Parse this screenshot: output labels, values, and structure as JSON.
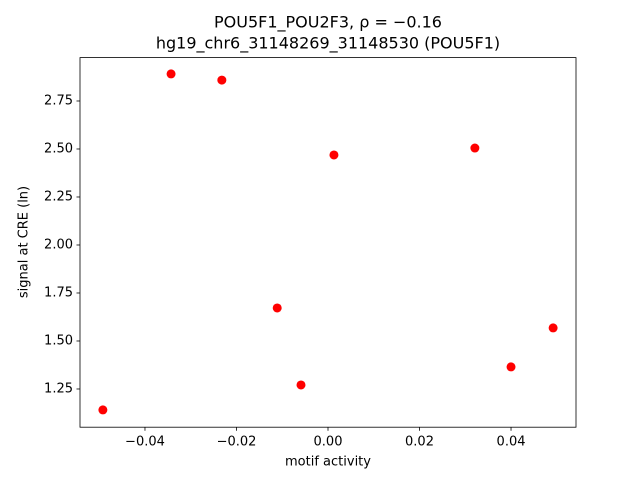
{
  "chart_data": {
    "type": "scatter",
    "title": "POU5F1_POU2F3, ρ = −0.16",
    "subtitle": "hg19_chr6_31148269_31148530 (POU5F1)",
    "x_label": "motif activity",
    "y_label": "signal at CRE (ln)",
    "color": "#ff0000",
    "x": [
      -0.0492,
      -0.0343,
      -0.0232,
      -0.0111,
      -0.0059,
      0.0013,
      0.0321,
      0.04,
      0.0492
    ],
    "values": [
      1.141,
      2.891,
      2.859,
      1.672,
      1.271,
      2.469,
      2.505,
      1.365,
      1.568
    ],
    "xlim": [
      -0.0542,
      0.0542
    ],
    "ylim": [
      1.051,
      2.976
    ],
    "xticks": [
      {
        "value": -0.04,
        "label": "−0.04"
      },
      {
        "value": -0.02,
        "label": "−0.02"
      },
      {
        "value": 0,
        "label": "0.00"
      },
      {
        "value": 0.02,
        "label": "0.02"
      },
      {
        "value": 0.04,
        "label": "0.04"
      }
    ],
    "yticks": [
      1.25,
      {
        "value": 1.5,
        "label": "1.50"
      },
      1.75,
      {
        "value": 2,
        "label": "2.00"
      },
      2.25,
      {
        "value": 2.5,
        "label": "2.50"
      },
      2.75
    ],
    "grid": false
  }
}
